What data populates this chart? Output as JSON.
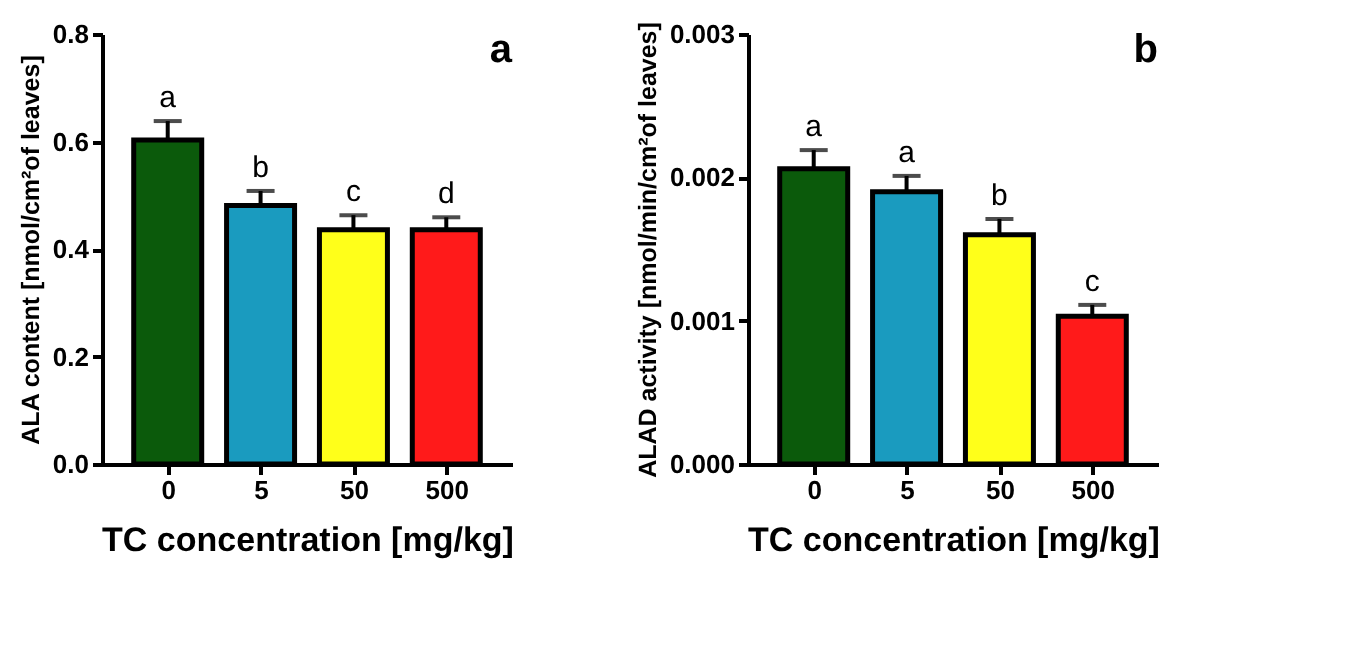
{
  "chart_data": [
    {
      "type": "bar",
      "xlabel": "TC concentration [mg/kg]",
      "ylabel": "ALA content [nmol/cm²of leaves]",
      "categories": [
        "0",
        "5",
        "50",
        "500"
      ],
      "values": [
        0.603,
        0.481,
        0.436,
        0.436
      ],
      "errors": [
        0.035,
        0.027,
        0.027,
        0.023
      ],
      "colors": [
        "#0b5a0b",
        "#1a9bbf",
        "#ffff1a",
        "#ff1a1a"
      ],
      "ylim": [
        0,
        0.8
      ],
      "yticks": [
        {
          "value": 0,
          "label": "0.0"
        },
        {
          "value": 0.2,
          "label": "0.2"
        },
        {
          "value": 0.4,
          "label": "0.4"
        },
        {
          "value": 0.6,
          "label": "0.6"
        },
        {
          "value": 0.8,
          "label": "0.8"
        }
      ],
      "grid": false,
      "annotations": [
        "a",
        {
          "text": "a",
          "x": "0",
          "y": 0.638
        },
        {
          "text": "b",
          "x": "5",
          "y": 0.508
        },
        {
          "text": "c",
          "x": "50",
          "y": 0.463
        },
        {
          "text": "d",
          "x": "500",
          "y": 0.459
        }
      ]
    },
    {
      "type": "bar",
      "xlabel": "TC concentration [mg/kg]",
      "ylabel": "ALAD activity [nmol/min/cm²of leaves]",
      "categories": [
        "0",
        "5",
        "50",
        "500"
      ],
      "values": [
        0.00206,
        0.0019,
        0.0016,
        0.00103
      ],
      "errors": [
        0.00013,
        0.00011,
        0.00011,
        8e-05
      ],
      "colors": [
        "#0b5a0b",
        "#1a9bbf",
        "#ffff1a",
        "#ff1a1a"
      ],
      "ylim": [
        0,
        0.003
      ],
      "yticks": [
        {
          "value": 0,
          "label": "0.000"
        },
        {
          "value": 0.001,
          "label": "0.001"
        },
        {
          "value": 0.002,
          "label": "0.002"
        },
        {
          "value": 0.003,
          "label": "0.003"
        }
      ],
      "grid": false,
      "annotations": [
        "b",
        {
          "text": "a",
          "x": "0",
          "y": 0.00219
        },
        {
          "text": "a",
          "x": "5",
          "y": 0.00201
        },
        {
          "text": "b",
          "x": "50",
          "y": 0.00171
        },
        {
          "text": "c",
          "x": "500",
          "y": 0.00111
        }
      ]
    }
  ]
}
